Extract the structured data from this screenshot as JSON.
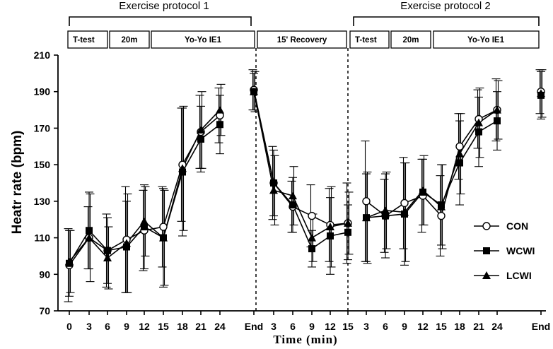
{
  "chart_data": {
    "type": "line",
    "title": "",
    "xlabel": "Time (min)",
    "ylabel": "Heatr rate (bpm)",
    "ylim": [
      70,
      210
    ],
    "yticks": [
      70,
      90,
      110,
      130,
      150,
      170,
      190,
      210
    ],
    "categories": [
      "0",
      "3",
      "6",
      "9",
      "12",
      "15",
      "18",
      "21",
      "24",
      "End",
      "3",
      "6",
      "9",
      "12",
      "15",
      "3",
      "6",
      "9",
      "12",
      "15",
      "18",
      "21",
      "24",
      "End"
    ],
    "series": [
      {
        "name": "CON",
        "marker": "circle-open",
        "values": [
          95,
          110,
          103,
          109,
          114,
          116,
          150,
          168,
          177,
          191,
          140,
          127,
          122,
          117,
          118,
          130,
          122,
          129,
          133,
          122,
          160,
          175,
          180,
          190
        ],
        "errors": [
          20,
          17,
          20,
          29,
          22,
          22,
          31,
          20,
          15,
          11,
          20,
          14,
          17,
          20,
          22,
          33,
          20,
          25,
          20,
          22,
          18,
          16,
          17,
          12
        ]
      },
      {
        "name": "WCWI",
        "marker": "square-filled",
        "values": [
          96,
          114,
          103,
          105,
          116,
          110,
          146,
          164,
          172,
          190,
          140,
          128,
          104,
          111,
          113,
          121,
          122,
          123,
          135,
          128,
          151,
          168,
          174,
          188
        ],
        "errors": [
          18,
          21,
          18,
          25,
          23,
          27,
          35,
          18,
          16,
          10,
          18,
          15,
          10,
          21,
          15,
          24,
          23,
          28,
          18,
          22,
          23,
          19,
          16,
          13
        ]
      },
      {
        "name": "LCWI",
        "marker": "triangle-filled",
        "values": [
          97,
          110,
          99,
          107,
          119,
          110,
          148,
          169,
          180,
          190,
          136,
          133,
          110,
          116,
          118,
          121,
          125,
          124,
          136,
          127,
          156,
          173,
          180,
          189
        ],
        "errors": [
          17,
          24,
          17,
          27,
          19,
          26,
          34,
          21,
          14,
          11,
          19,
          16,
          13,
          22,
          17,
          25,
          21,
          27,
          19,
          23,
          22,
          19,
          16,
          13
        ]
      }
    ],
    "protocols": [
      "Exercise protocol 1",
      "Exercise protocol 2"
    ],
    "phases": [
      "T-test",
      "20m",
      "Yo-Yo IE1",
      "15' Recovery",
      "T-test",
      "20m",
      "Yo-Yo IE1"
    ]
  }
}
